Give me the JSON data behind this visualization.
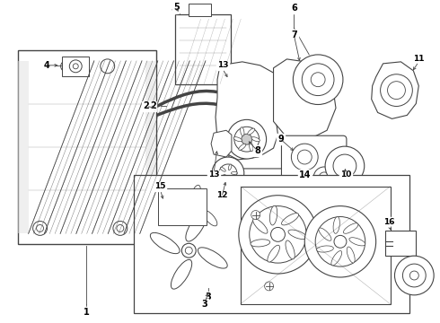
{
  "background_color": "#ffffff",
  "line_color": "#444444",
  "label_color": "#000000",
  "lw": 0.7,
  "fig_w": 4.9,
  "fig_h": 3.6,
  "dpi": 100
}
